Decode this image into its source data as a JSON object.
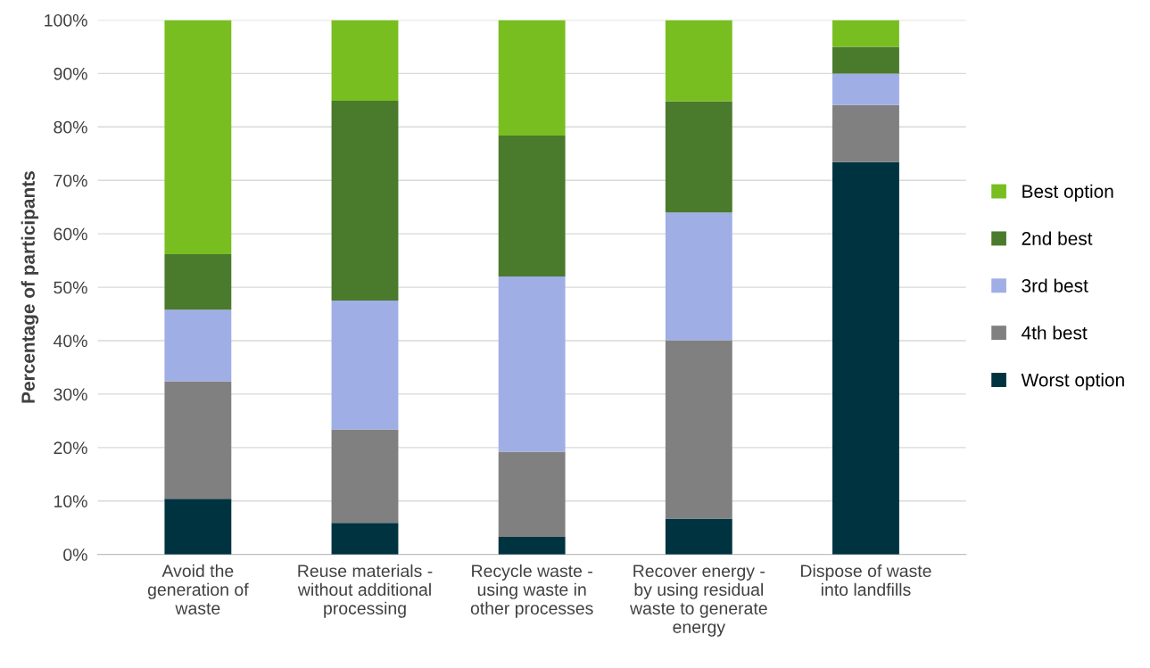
{
  "chart_data": {
    "type": "bar",
    "stacked": true,
    "ylabel": "Percentage of participants",
    "categories": [
      "Avoid the\ngeneration of\nwaste",
      "Reuse materials -\nwithout additional\nprocessing",
      "Recycle waste -\nusing waste in\nother processes",
      "Recover energy -\nby using residual\nwaste to generate\nenergy",
      "Dispose of waste\ninto landfills"
    ],
    "series": [
      {
        "name": "Worst option",
        "color": "#003340",
        "values": [
          10.4,
          5.9,
          3.3,
          6.7,
          73.4
        ]
      },
      {
        "name": "4th best",
        "color": "#808080",
        "values": [
          22.0,
          17.5,
          15.9,
          33.4,
          10.7
        ]
      },
      {
        "name": "3rd best",
        "color": "#a0aee6",
        "values": [
          13.4,
          24.1,
          32.8,
          23.9,
          5.9
        ]
      },
      {
        "name": "2nd best",
        "color": "#4a7a2b",
        "values": [
          10.4,
          37.4,
          26.4,
          20.8,
          5.0
        ]
      },
      {
        "name": "Best option",
        "color": "#78be20",
        "values": [
          43.8,
          15.1,
          21.6,
          15.2,
          5.0
        ]
      }
    ],
    "ylim": [
      0,
      100
    ],
    "yticks": [
      {
        "value": 0,
        "label": "0%"
      },
      {
        "value": 10,
        "label": "10%"
      },
      {
        "value": 20,
        "label": "20%"
      },
      {
        "value": 30,
        "label": "30%"
      },
      {
        "value": 40,
        "label": "40%"
      },
      {
        "value": 50,
        "label": "50%"
      },
      {
        "value": 60,
        "label": "60%"
      },
      {
        "value": 70,
        "label": "70%"
      },
      {
        "value": 80,
        "label": "80%"
      },
      {
        "value": 90,
        "label": "90%"
      },
      {
        "value": 100,
        "label": "100%"
      }
    ],
    "grid": "y",
    "legend": "right"
  }
}
